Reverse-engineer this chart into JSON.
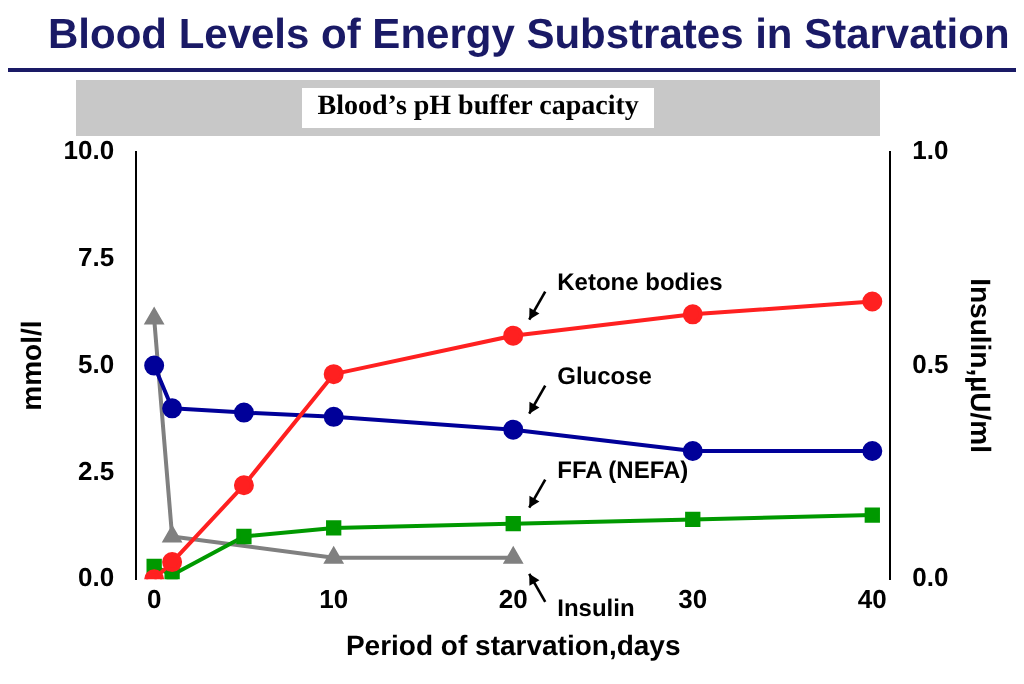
{
  "chart_data": {
    "type": "line",
    "title": "Blood Levels of Energy Substrates in Starvation",
    "xlabel": "Period of starvation,days",
    "ylabel": "mmol/l",
    "y2label": "Insulin,µU/ml",
    "annotations": [
      "Blood’s pH buffer capacity"
    ],
    "series": [
      {
        "name": "Ketone bodies",
        "color": "#ff2020",
        "marker": "circle",
        "x": [
          0,
          1,
          5,
          10,
          20,
          30,
          40
        ],
        "values": [
          0,
          0.4,
          2.2,
          4.8,
          5.7,
          6.2,
          6.5
        ]
      },
      {
        "name": "Glucose",
        "color": "#000099",
        "marker": "circle",
        "x": [
          0,
          1,
          5,
          10,
          20,
          30,
          40
        ],
        "values": [
          5.0,
          4.0,
          3.9,
          3.8,
          3.5,
          3.0,
          3.0
        ]
      },
      {
        "name": "FFA (NEFA)",
        "color": "#009900",
        "marker": "square",
        "x": [
          0,
          1,
          5,
          10,
          20,
          30,
          40
        ],
        "values": [
          0.3,
          0.1,
          1.0,
          1.2,
          1.3,
          1.4,
          1.5
        ]
      },
      {
        "name": "Insulin",
        "color": "#808080",
        "marker": "triangle",
        "axis": "y2",
        "x": [
          0,
          1,
          10,
          20
        ],
        "values": [
          0.61,
          0.1,
          0.05,
          0.05
        ]
      }
    ],
    "xlim": [
      -1,
      41
    ],
    "xticks": [
      0,
      10,
      20,
      30,
      40
    ],
    "ylim": [
      0,
      10
    ],
    "yticks": [
      {
        "value": 0,
        "label": "0.0"
      },
      {
        "value": 2.5,
        "label": "2.5"
      },
      {
        "value": 5,
        "label": "5.0"
      },
      {
        "value": 7.5,
        "label": "7.5"
      },
      {
        "value": 10,
        "label": "10.0"
      }
    ],
    "y2lim": [
      0,
      1
    ],
    "y2ticks": [
      {
        "value": 0,
        "label": "0.0"
      },
      {
        "value": 0.5,
        "label": "0.5"
      },
      {
        "value": 1,
        "label": "1.0"
      }
    ],
    "grid": false,
    "legend": false
  }
}
